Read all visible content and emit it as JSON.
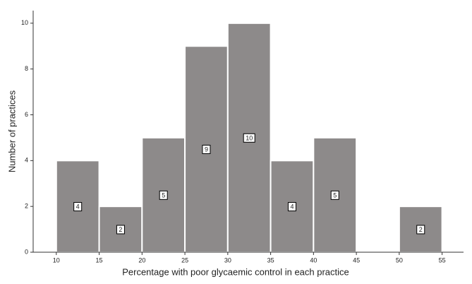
{
  "chart_data": {
    "type": "histogram",
    "x_label": "Percentage with poor glycaemic control in each practice",
    "y_label": "Number of practices",
    "bins": [
      10,
      15,
      20,
      25,
      30,
      35,
      40,
      45,
      50,
      55
    ],
    "values": [
      4,
      2,
      5,
      9,
      10,
      4,
      5,
      0,
      2
    ],
    "color": "#8d8a8a",
    "xlim": [
      7.3,
      57.5
    ],
    "xticks": [
      10,
      15,
      20,
      25,
      30,
      35,
      40,
      45,
      50,
      55
    ],
    "ylim": [
      0,
      10.55
    ],
    "yticks": [
      0,
      2,
      4,
      6,
      8,
      10
    ]
  }
}
